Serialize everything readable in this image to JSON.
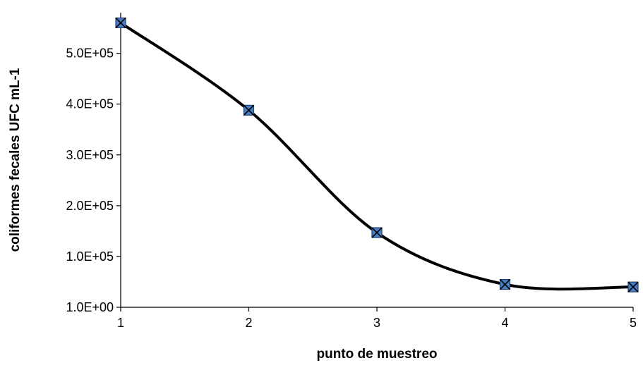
{
  "chart_data": {
    "type": "line",
    "title": "",
    "xlabel": "punto de muestreo",
    "ylabel": "coliformes fecales UFC mL-1",
    "x": [
      1,
      2,
      3,
      4,
      5
    ],
    "series": [
      {
        "values": [
          560000,
          388000,
          147000,
          45000,
          40000
        ]
      }
    ],
    "xlim": [
      1,
      5
    ],
    "ylim": [
      1,
      580000
    ],
    "xticks": [
      "1",
      "2",
      "3",
      "4",
      "5"
    ],
    "yticks": [
      {
        "value": 1,
        "label": "1.0E+00"
      },
      {
        "value": 100000,
        "label": "1.0E+05"
      },
      {
        "value": 200000,
        "label": "2.0E+05"
      },
      {
        "value": 300000,
        "label": "3.0E+05"
      },
      {
        "value": 400000,
        "label": "4.0E+05"
      },
      {
        "value": 500000,
        "label": "5.0E+05"
      }
    ],
    "line_color": "#000000",
    "marker": "x-square",
    "marker_color": "#4a7ec4",
    "grid": false,
    "legend": "none",
    "smooth": true
  }
}
